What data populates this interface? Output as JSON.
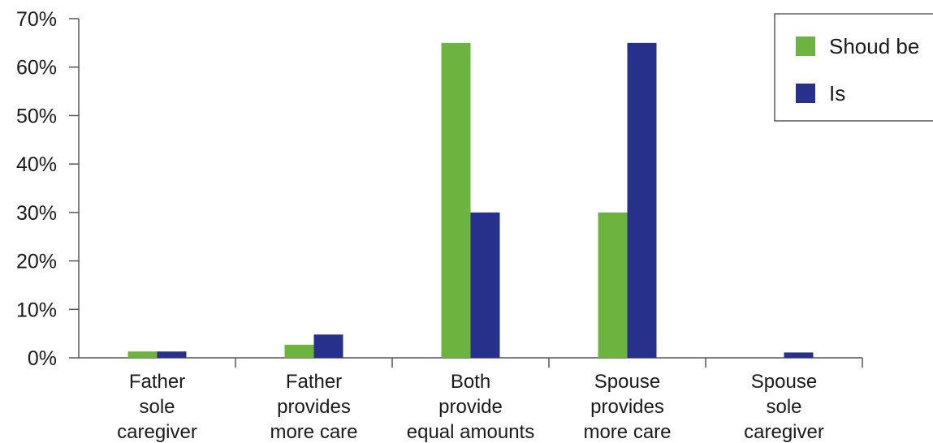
{
  "chart_data": {
    "type": "bar",
    "categories": [
      [
        "Father",
        "sole",
        "caregiver"
      ],
      [
        "Father",
        "provides",
        "more care"
      ],
      [
        "Both",
        "provide",
        "equal amounts"
      ],
      [
        "Spouse",
        "provides",
        "more care"
      ],
      [
        "Spouse",
        "sole",
        "caregiver"
      ]
    ],
    "series": [
      {
        "name": "Shoud be",
        "color": "#6db33f",
        "values": [
          1.3,
          2.7,
          65,
          30,
          0
        ]
      },
      {
        "name": "Is",
        "color": "#27318b",
        "values": [
          1.3,
          4.8,
          30,
          65,
          1.1
        ]
      }
    ],
    "y_ticks": [
      "0%",
      "10%",
      "20%",
      "30%",
      "40%",
      "50%",
      "60%",
      "70%"
    ],
    "ylim": [
      0,
      70
    ],
    "grid": false,
    "legend_position": "top-right"
  }
}
